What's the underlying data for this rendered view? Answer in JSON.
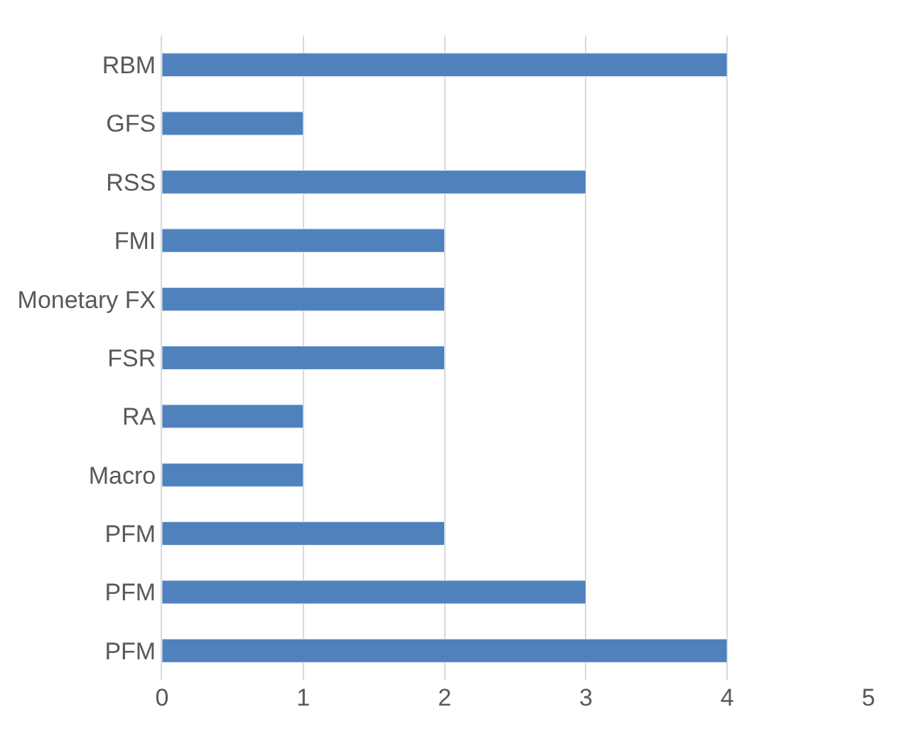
{
  "chart_data": {
    "type": "bar",
    "orientation": "horizontal",
    "categories": [
      "RBM",
      "GFS",
      "RSS",
      "FMI",
      "Monetary FX",
      "FSR",
      "RA",
      "Macro",
      "PFM",
      "PFM",
      "PFM"
    ],
    "values": [
      4,
      1,
      3,
      2,
      2,
      2,
      1,
      1,
      2,
      3,
      4
    ],
    "color": "#4f81bd",
    "xlim": [
      0,
      5
    ],
    "xticks": [
      0,
      1,
      2,
      3,
      4,
      5
    ],
    "grid": "x"
  }
}
